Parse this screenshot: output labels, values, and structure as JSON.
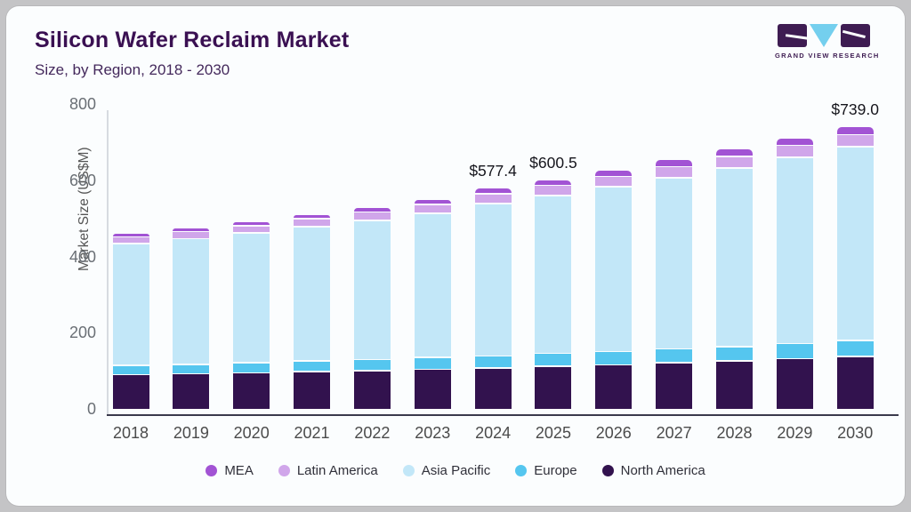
{
  "header": {
    "title": "Silicon Wafer Reclaim Market",
    "subtitle": "Size, by Region, 2018 - 2030",
    "logo": {
      "brand": "GRAND VIEW RESEARCH"
    }
  },
  "chart_data": {
    "type": "bar",
    "stacked": true,
    "title": "Silicon Wafer Reclaim Market",
    "subtitle": "Size, by Region, 2018 - 2030",
    "xlabel": "",
    "ylabel": "Market Size (US$M)",
    "ylim": [
      0,
      800
    ],
    "yticks": [
      0,
      200,
      400,
      600,
      800
    ],
    "grid": false,
    "legend_position": "bottom",
    "categories": [
      "2018",
      "2019",
      "2020",
      "2021",
      "2022",
      "2023",
      "2024",
      "2025",
      "2026",
      "2027",
      "2028",
      "2029",
      "2030"
    ],
    "series": [
      {
        "name": "North America",
        "color": "#32124e",
        "values": [
          88,
          90,
          93,
          96,
          99,
          102,
          105.4,
          110,
          114,
          119,
          124,
          130,
          136
        ]
      },
      {
        "name": "Europe",
        "color": "#55c6ef",
        "values": [
          24,
          25,
          27,
          28,
          29,
          31,
          32,
          33.5,
          35,
          37,
          38,
          40,
          42
        ]
      },
      {
        "name": "Asia Pacific",
        "color": "#c2e7f8",
        "values": [
          320,
          330,
          340,
          352,
          365,
          378,
          400,
          415,
          432,
          449,
          468,
          488,
          508
        ]
      },
      {
        "name": "Latin America",
        "color": "#d0a6ea",
        "values": [
          17,
          18,
          19,
          21,
          22,
          24,
          25,
          26,
          27,
          29,
          31,
          32,
          32
        ]
      },
      {
        "name": "MEA",
        "color": "#a253d4",
        "values": [
          10,
          10,
          11,
          12,
          13,
          14,
          15,
          16,
          17,
          18,
          19,
          20,
          21
        ]
      }
    ],
    "legend_order": [
      "MEA",
      "Latin America",
      "Asia Pacific",
      "Europe",
      "North America"
    ],
    "annotations": [
      {
        "category": "2024",
        "text": "$577.4"
      },
      {
        "category": "2025",
        "text": "$600.5"
      },
      {
        "category": "2030",
        "text": "$739.0"
      }
    ]
  }
}
